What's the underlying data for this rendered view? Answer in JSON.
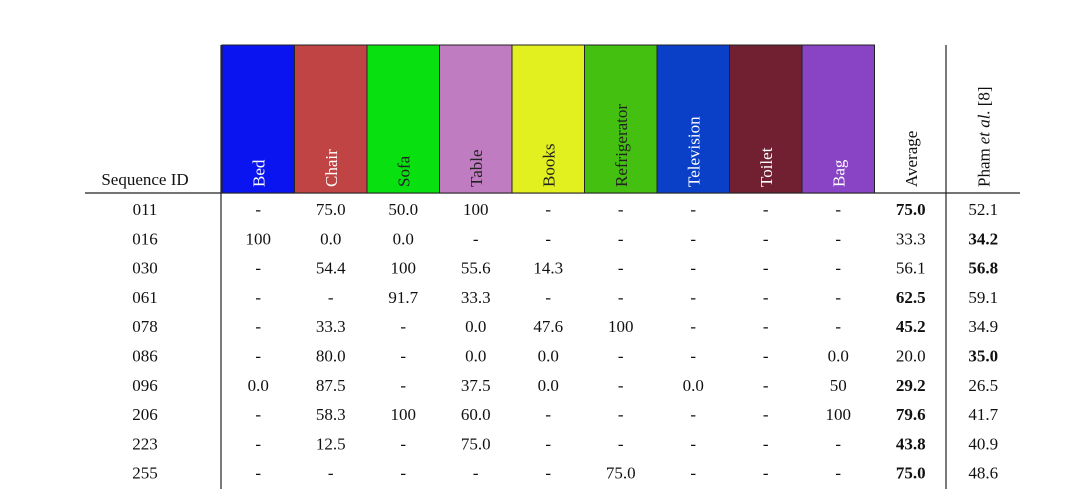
{
  "table": {
    "header": {
      "first": "Sequence ID",
      "columns": [
        {
          "label": "Bed",
          "color": "#0a14f0",
          "text_color": "#ffffff"
        },
        {
          "label": "Chair",
          "color": "#c04444",
          "text_color": "#ffffff"
        },
        {
          "label": "Sofa",
          "color": "#08e010",
          "text_color": "#222222"
        },
        {
          "label": "Table",
          "color": "#c07cc0",
          "text_color": "#222222"
        },
        {
          "label": "Books",
          "color": "#e2f020",
          "text_color": "#222222"
        },
        {
          "label": "Refrigerator",
          "color": "#44c010",
          "text_color": "#222222"
        },
        {
          "label": "Television",
          "color": "#0a40c8",
          "text_color": "#ffffff"
        },
        {
          "label": "Toilet",
          "color": "#702030",
          "text_color": "#ffffff"
        },
        {
          "label": "Bag",
          "color": "#8844c4",
          "text_color": "#ffffff"
        }
      ],
      "average": "Average",
      "pham": [
        "Pham",
        "et al.",
        "[8]"
      ]
    },
    "rows": [
      {
        "id": "011",
        "cells": [
          "-",
          "75.0",
          "50.0",
          "100",
          "-",
          "-",
          "-",
          "-",
          "-"
        ],
        "average": "75.0",
        "pham": "52.1",
        "bold": "average"
      },
      {
        "id": "016",
        "cells": [
          "100",
          "0.0",
          "0.0",
          "-",
          "-",
          "-",
          "-",
          "-",
          "-"
        ],
        "average": "33.3",
        "pham": "34.2",
        "bold": "pham"
      },
      {
        "id": "030",
        "cells": [
          "-",
          "54.4",
          "100",
          "55.6",
          "14.3",
          "-",
          "-",
          "-",
          "-"
        ],
        "average": "56.1",
        "pham": "56.8",
        "bold": "pham"
      },
      {
        "id": "061",
        "cells": [
          "-",
          "-",
          "91.7",
          "33.3",
          "-",
          "-",
          "-",
          "-",
          "-"
        ],
        "average": "62.5",
        "pham": "59.1",
        "bold": "average"
      },
      {
        "id": "078",
        "cells": [
          "-",
          "33.3",
          "-",
          "0.0",
          "47.6",
          "100",
          "-",
          "-",
          "-"
        ],
        "average": "45.2",
        "pham": "34.9",
        "bold": "average"
      },
      {
        "id": "086",
        "cells": [
          "-",
          "80.0",
          "-",
          "0.0",
          "0.0",
          "-",
          "-",
          "-",
          "0.0"
        ],
        "average": "20.0",
        "pham": "35.0",
        "bold": "pham"
      },
      {
        "id": "096",
        "cells": [
          "0.0",
          "87.5",
          "-",
          "37.5",
          "0.0",
          "-",
          "0.0",
          "-",
          "50"
        ],
        "average": "29.2",
        "pham": "26.5",
        "bold": "average"
      },
      {
        "id": "206",
        "cells": [
          "-",
          "58.3",
          "100",
          "60.0",
          "-",
          "-",
          "-",
          "-",
          "100"
        ],
        "average": "79.6",
        "pham": "41.7",
        "bold": "average"
      },
      {
        "id": "223",
        "cells": [
          "-",
          "12.5",
          "-",
          "75.0",
          "-",
          "-",
          "-",
          "-",
          "-"
        ],
        "average": "43.8",
        "pham": "40.9",
        "bold": "average"
      },
      {
        "id": "255",
        "cells": [
          "-",
          "-",
          "-",
          "-",
          "-",
          "75.0",
          "-",
          "-",
          "-"
        ],
        "average": "75.0",
        "pham": "48.6",
        "bold": "average"
      }
    ]
  }
}
